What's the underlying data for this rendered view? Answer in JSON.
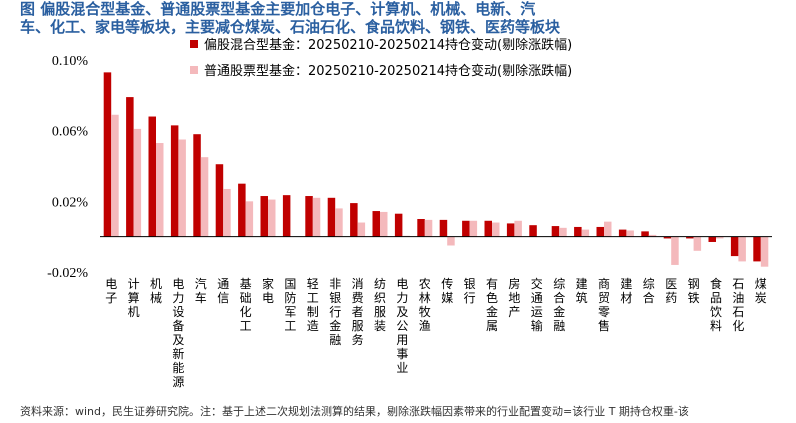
{
  "header": {
    "line1": "图    偏股混合型基金、普通股票型基金主要加仓电子、计算机、机械、电新、汽",
    "line2": "车、化工、家电等板块，主要减仓煤炭、石油石化、食品饮料、钢铁、医药等板块"
  },
  "source": "资料来源：wind，民生证券研究院。注：基于上述二次规划法测算的结果，剔除涨跌幅因素带来的行业配置变动=该行业 T 期持仓权重-该",
  "colors": {
    "series1": "#c00000",
    "series2": "#f4b9bc"
  },
  "chart_data": {
    "type": "bar",
    "categories": [
      "电子",
      "计算机",
      "机械",
      "电力设备及新能源",
      "汽车",
      "通信",
      "基础化工",
      "家电",
      "国防军工",
      "轻工制造",
      "非银行金融",
      "消费者服务",
      "纺织服装",
      "电力及公用事业",
      "农林牧渔",
      "传媒",
      "银行",
      "有色金属",
      "房地产",
      "交通运输",
      "综合金融",
      "建筑",
      "商贸零售",
      "建材",
      "综合",
      "医药",
      "钢铁",
      "食品饮料",
      "石油石化",
      "煤炭"
    ],
    "series": [
      {
        "name": "偏股混合型基金：20250210-20250214持仓变动(剔除涨跌幅)",
        "values": [
          0.093,
          0.079,
          0.068,
          0.063,
          0.058,
          0.041,
          0.03,
          0.023,
          0.0235,
          0.023,
          0.022,
          0.019,
          0.0145,
          0.013,
          0.01,
          0.0095,
          0.009,
          0.009,
          0.0075,
          0.0065,
          0.006,
          0.0055,
          0.0055,
          0.004,
          0.003,
          -0.001,
          -0.001,
          -0.003,
          -0.011,
          -0.014
        ]
      },
      {
        "name": "普通股票型基金：20250210-20250214持仓变动(剔除涨跌幅)",
        "values": [
          0.069,
          0.061,
          0.053,
          0.055,
          0.045,
          0.027,
          0.02,
          0.021,
          0.0,
          0.022,
          0.016,
          0.008,
          0.014,
          0.0005,
          0.0095,
          -0.005,
          0.009,
          0.008,
          0.009,
          0.0,
          0.005,
          0.004,
          0.0085,
          0.0035,
          0.001,
          -0.016,
          -0.008,
          -0.001,
          -0.014,
          -0.017
        ]
      }
    ],
    "yticks": [
      "0.10%",
      "0.06%",
      "0.02%",
      "-0.02%"
    ],
    "ytick_values": [
      0.1,
      0.06,
      0.02,
      -0.02
    ],
    "ylim": [
      -0.02,
      0.1
    ],
    "legend_position": "top"
  }
}
